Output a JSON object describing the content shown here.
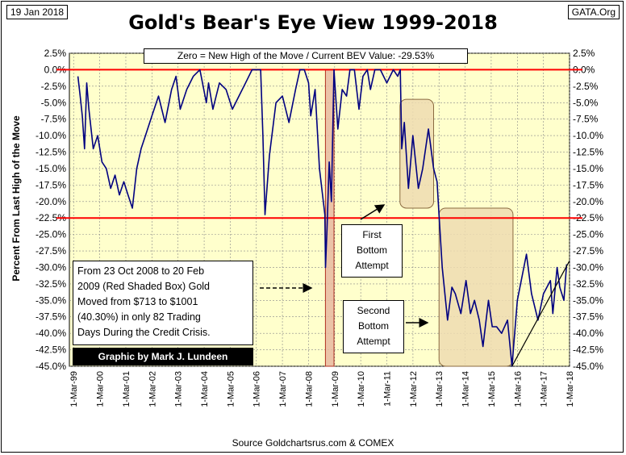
{
  "header": {
    "date": "19 Jan 2018",
    "site": "GATA.Org",
    "title": "Gold's Bear's Eye View 1999-2018"
  },
  "bev_label": "Zero = New High of the Move / Current BEV Value:  -29.53%",
  "info_box": {
    "lines": [
      "From  23 Oct 2008 to 20 Feb",
      "2009 (Red Shaded Box)  Gold",
      "Moved from $713 to $1001",
      "(40.30%) in only 82 Trading",
      "Days During the Credit Crisis."
    ]
  },
  "credit": "Graphic by Mark J. Lundeen",
  "annotations": {
    "first": [
      "First",
      "Bottom",
      "Attempt"
    ],
    "second": [
      "Second",
      "Bottom",
      "Attempt"
    ]
  },
  "source": "Source Goldchartsrus.com & COMEX",
  "colors": {
    "plot_bg": "#ffffcc",
    "series": "#000080",
    "reference_lines": "#ff0000",
    "red_box": "#e8b8a0",
    "tan_box": "#efdcb0"
  },
  "chart_data": {
    "type": "line",
    "title": "Gold's Bear's Eye View 1999-2018",
    "ylabel": "Percent  From Last High of the Move",
    "xlabel": "",
    "ylim": [
      -45,
      2.5
    ],
    "y_ticks": [
      "2.5%",
      "0.0%",
      "-2.5%",
      "-5.0%",
      "-7.5%",
      "-10.0%",
      "-12.5%",
      "-15.0%",
      "-17.5%",
      "-20.0%",
      "-22.5%",
      "-25.0%",
      "-27.5%",
      "-30.0%",
      "-32.5%",
      "-35.0%",
      "-37.5%",
      "-40.0%",
      "-42.5%",
      "-45.0%"
    ],
    "x_ticks": [
      "1-Mar-99",
      "1-Mar-00",
      "1-Mar-01",
      "1-Mar-02",
      "1-Mar-03",
      "1-Mar-04",
      "1-Mar-05",
      "1-Mar-06",
      "1-Mar-07",
      "1-Mar-08",
      "1-Mar-09",
      "1-Mar-10",
      "1-Mar-11",
      "1-Mar-12",
      "1-Mar-13",
      "1-Mar-14",
      "1-Mar-15",
      "1-Mar-16",
      "1-Mar-17",
      "1-Mar-18"
    ],
    "xlim": [
      "1999-01-01",
      "2018-03-01"
    ],
    "reference_lines": [
      0,
      -22.5
    ],
    "grid": true,
    "series": [
      {
        "x": [
          "1999-05-01",
          "1999-06-01",
          "1999-07-01",
          "1999-08-01",
          "1999-09-01",
          "1999-10-01",
          "1999-11-01",
          "1999-12-01",
          "2000-02-01",
          "2000-04-01",
          "2000-06-01",
          "2000-08-01",
          "2000-10-01",
          "2000-12-01",
          "2001-02-01",
          "2001-04-01",
          "2001-06-01",
          "2001-08-01",
          "2001-10-01",
          "2001-12-01",
          "2002-03-01",
          "2002-06-01",
          "2002-09-01",
          "2002-12-01",
          "2003-02-01",
          "2003-04-01",
          "2003-07-01",
          "2003-10-01",
          "2004-01-01",
          "2004-04-01",
          "2004-05-01",
          "2004-07-01",
          "2004-10-01",
          "2005-01-01",
          "2005-04-01",
          "2005-07-01",
          "2005-10-01",
          "2006-01-01",
          "2006-05-01",
          "2006-06-01",
          "2006-07-01",
          "2006-09-01",
          "2006-12-01",
          "2007-03-01",
          "2007-06-01",
          "2007-09-01",
          "2007-11-01",
          "2008-01-01",
          "2008-03-01",
          "2008-04-01",
          "2008-06-01",
          "2008-08-01",
          "2008-10-15",
          "2008-10-24",
          "2008-11-15",
          "2008-12-15",
          "2009-01-15",
          "2009-02-20",
          "2009-04-15",
          "2009-06-15",
          "2009-08-15",
          "2009-10-01",
          "2009-12-02",
          "2010-02-05",
          "2010-04-01",
          "2010-06-01",
          "2010-07-15",
          "2010-09-15",
          "2010-12-01",
          "2011-03-01",
          "2011-06-01",
          "2011-08-01",
          "2011-09-06",
          "2011-09-26",
          "2011-11-01",
          "2011-12-29",
          "2012-02-29",
          "2012-05-16",
          "2012-07-15",
          "2012-10-04",
          "2012-12-15",
          "2013-02-01",
          "2013-03-01",
          "2013-04-15",
          "2013-06-28",
          "2013-08-28",
          "2013-10-15",
          "2013-12-31",
          "2014-03-14",
          "2014-05-15",
          "2014-07-10",
          "2014-09-15",
          "2014-11-06",
          "2015-01-22",
          "2015-03-15",
          "2015-05-15",
          "2015-07-24",
          "2015-10-15",
          "2015-12-17",
          "2016-03-01",
          "2016-07-06",
          "2016-09-15",
          "2016-12-15",
          "2017-03-01",
          "2017-06-06",
          "2017-07-10",
          "2017-09-08",
          "2017-10-15",
          "2017-12-12",
          "2018-01-19"
        ],
        "y": [
          -1,
          -4,
          -7,
          -12,
          -2,
          -6,
          -9,
          -12,
          -10,
          -14,
          -15,
          -18,
          -16,
          -19,
          -17,
          -19,
          -21,
          -15,
          -12,
          -10,
          -7,
          -4,
          -8,
          -3,
          -1,
          -6,
          -3,
          -1,
          0,
          -5,
          -2,
          -6,
          -2,
          -3,
          -6,
          -4,
          -2,
          0,
          0,
          -10,
          -22,
          -13,
          -5,
          -4,
          -8,
          -3,
          0,
          0,
          -2,
          -7,
          -3,
          -15,
          -22,
          -30,
          -24,
          -14,
          -20,
          0,
          -9,
          -3,
          -4,
          0,
          0,
          -6,
          -1,
          0,
          -3,
          0,
          0,
          -2,
          0,
          -1,
          0,
          -12,
          -8,
          -18,
          -10,
          -18,
          -15,
          -9,
          -15,
          -17,
          -22,
          -30,
          -38,
          -33,
          -34,
          -37,
          -32,
          -37,
          -35,
          -38,
          -42,
          -35,
          -39,
          -39,
          -40,
          -38,
          -45,
          -35,
          -28,
          -34,
          -38,
          -34,
          -32,
          -37,
          -30,
          -33,
          -35,
          -29.53
        ]
      }
    ],
    "shaded_boxes": [
      {
        "name": "Red Shaded Box",
        "x": [
          "2008-10-23",
          "2009-02-20"
        ],
        "y": [
          -45,
          0
        ]
      },
      {
        "name": "First Bottom Attempt",
        "x": [
          "2011-09-01",
          "2012-12-15"
        ],
        "y": [
          -21,
          -4.5
        ]
      },
      {
        "name": "Second Bottom Attempt",
        "x": [
          "2013-03-01",
          "2015-12-31"
        ],
        "y": [
          -45,
          -21
        ]
      }
    ],
    "trend_line": {
      "x": [
        "2015-12-17",
        "2018-03-01"
      ],
      "y": [
        -45,
        -29
      ]
    }
  }
}
